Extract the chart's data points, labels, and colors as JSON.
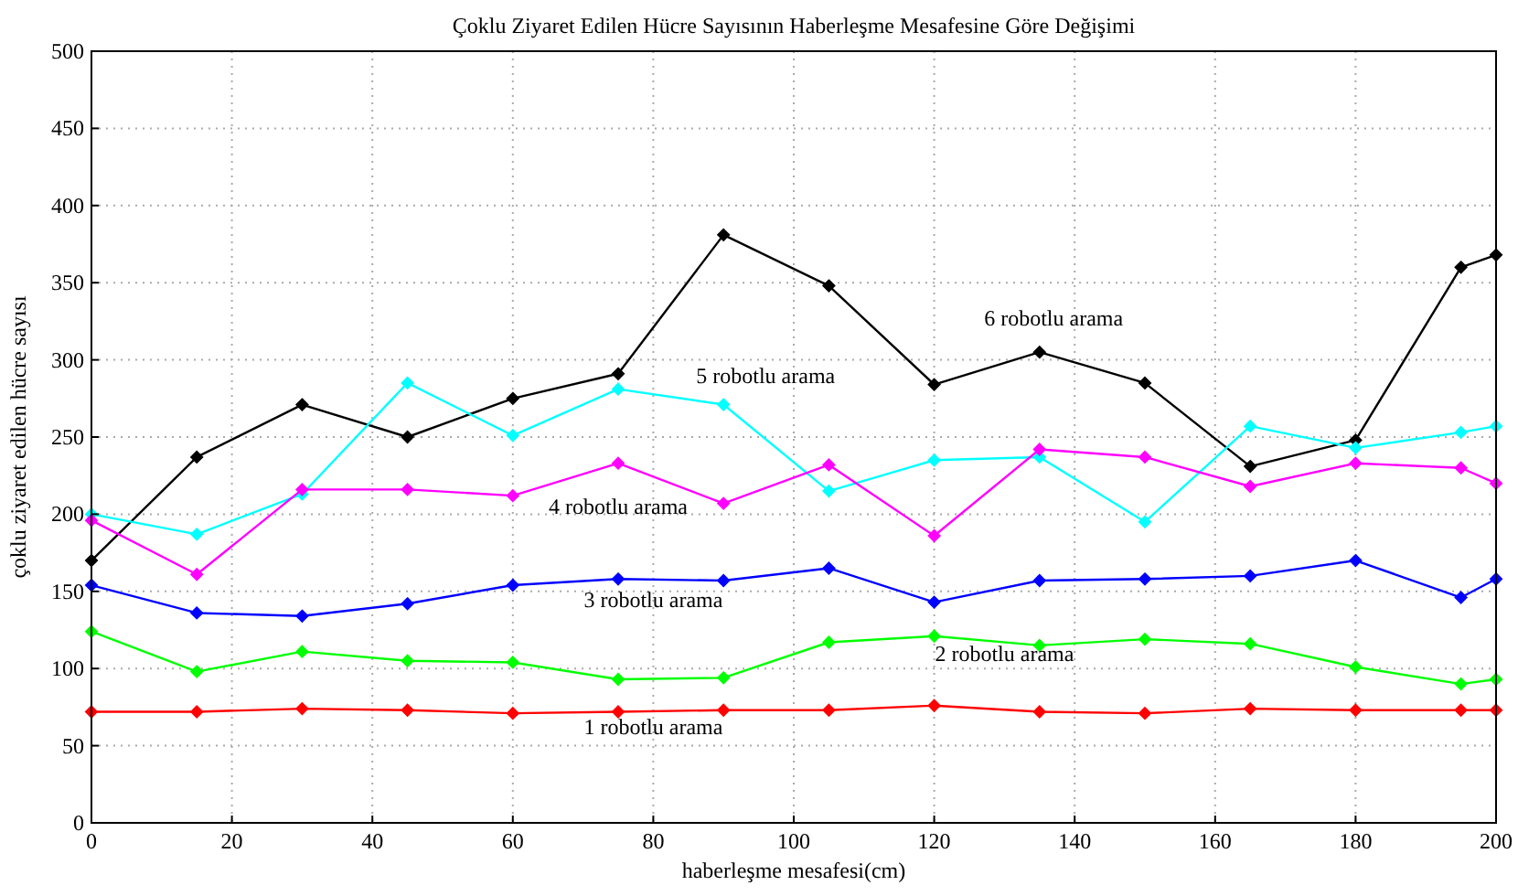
{
  "chart_data": {
    "type": "line",
    "title": "Çoklu Ziyaret Edilen Hücre Sayısının Haberleşme Mesafesine Göre Değişimi",
    "xlabel": "haberleşme mesafesi(cm)",
    "ylabel": "çoklu ziyaret edilen hücre sayısı",
    "x": [
      0,
      15,
      30,
      45,
      60,
      75,
      90,
      105,
      120,
      135,
      150,
      165,
      180,
      195,
      200
    ],
    "series": [
      {
        "name": "6 robotlu arama",
        "color": "#000000",
        "values": [
          170,
          237,
          271,
          250,
          275,
          291,
          381,
          348,
          284,
          305,
          285,
          231,
          248,
          360,
          368
        ]
      },
      {
        "name": "5 robotlu arama",
        "color": "#00ffff",
        "values": [
          200,
          187,
          213,
          285,
          251,
          281,
          271,
          215,
          235,
          237,
          195,
          257,
          243,
          253,
          257
        ]
      },
      {
        "name": "4 robotlu arama",
        "color": "#ff00ff",
        "values": [
          196,
          161,
          216,
          216,
          212,
          233,
          207,
          232,
          186,
          242,
          237,
          218,
          233,
          230,
          220
        ]
      },
      {
        "name": "3 robotlu arama",
        "color": "#0000ff",
        "values": [
          154,
          136,
          134,
          142,
          154,
          158,
          157,
          165,
          143,
          157,
          158,
          160,
          170,
          146,
          158
        ]
      },
      {
        "name": "2 robotlu arama",
        "color": "#00ff00",
        "values": [
          124,
          98,
          111,
          105,
          104,
          93,
          94,
          117,
          121,
          115,
          119,
          116,
          101,
          90,
          93
        ]
      },
      {
        "name": "1 robotlu arama",
        "color": "#ff0000",
        "values": [
          72,
          72,
          74,
          73,
          71,
          72,
          73,
          73,
          76,
          72,
          71,
          74,
          73,
          73,
          73
        ]
      }
    ],
    "xlim": [
      0,
      200
    ],
    "xticks": [
      0,
      20,
      40,
      60,
      80,
      100,
      120,
      140,
      160,
      180,
      200
    ],
    "ylim": [
      0,
      500
    ],
    "yticks": [
      0,
      50,
      100,
      150,
      200,
      250,
      300,
      350,
      400,
      450,
      500
    ],
    "grid": true,
    "marker": "diamond",
    "line_style": "solid"
  }
}
